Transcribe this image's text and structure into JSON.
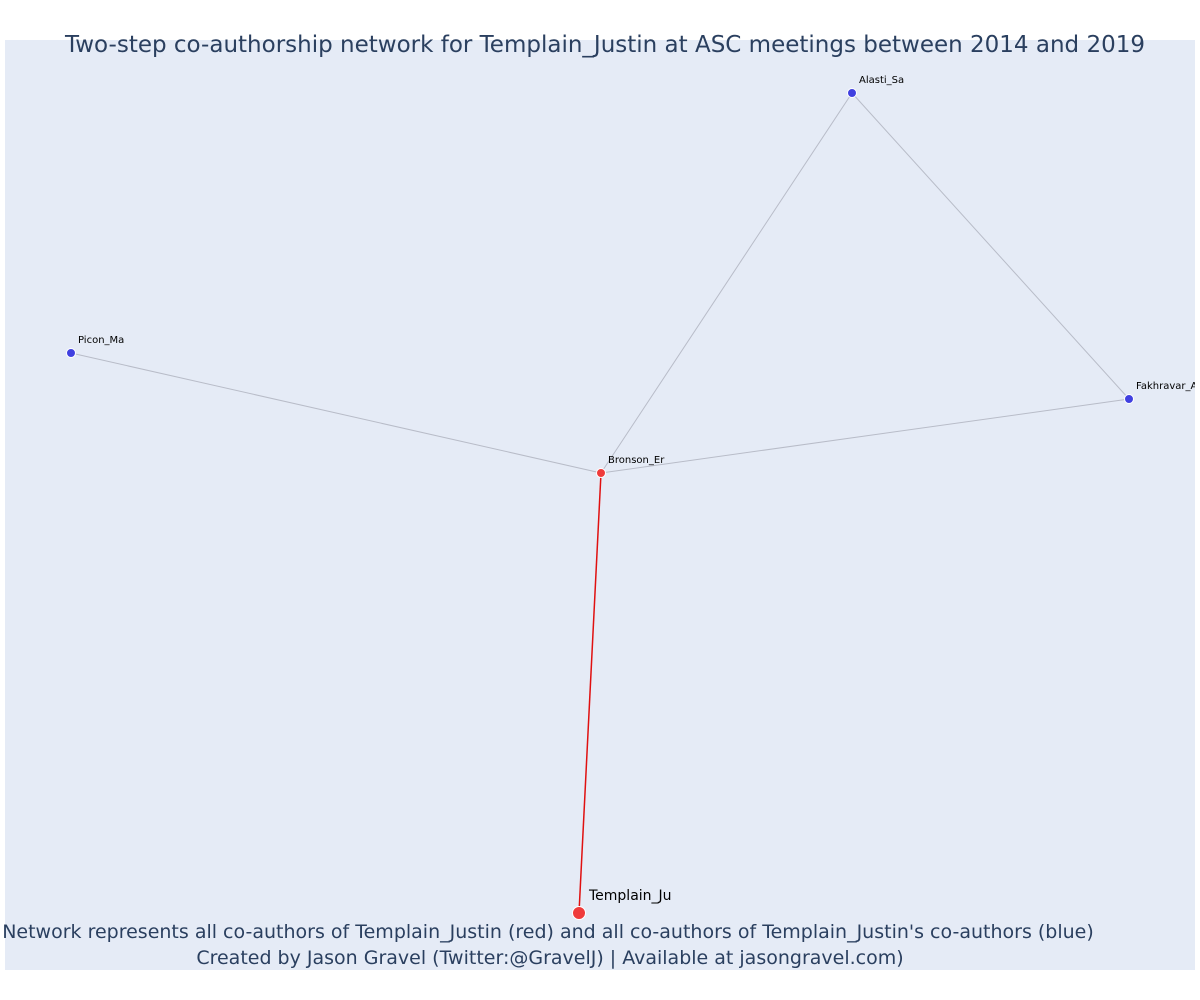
{
  "title": "Two-step co-authorship network for Templain_Justin at ASC meetings between 2014 and 2019",
  "footer": {
    "line1": "Network represents all co-authors of Templain_Justin (red) and all co-authors of Templain_Justin's co-authors (blue)",
    "line2": "Created by Jason Gravel (Twitter:@GravelJ) | Available at jasongravel.com)"
  },
  "colors": {
    "background": "#e5ebf6",
    "text": "#2a3f5f",
    "focal_node": "#ef3b3b",
    "coauthor_node": "#ef3b3b",
    "second_step_node": "#4040e0",
    "focal_edge": "#e01010",
    "other_edge": "#b8bcc8"
  },
  "nodes": [
    {
      "id": "Templain_Ju",
      "label": "Templain_Ju",
      "role": "focal"
    },
    {
      "id": "Bronson_Er",
      "label": "Bronson_Er",
      "role": "coauthor"
    },
    {
      "id": "Alasti_Sa",
      "label": "Alasti_Sa",
      "role": "second_step"
    },
    {
      "id": "Picon_Ma",
      "label": "Picon_Ma",
      "role": "second_step"
    },
    {
      "id": "Fakhravar_Ar",
      "label": "Fakhravar_Ar",
      "role": "second_step"
    }
  ],
  "edges": [
    {
      "source": "Templain_Ju",
      "target": "Bronson_Er"
    },
    {
      "source": "Bronson_Er",
      "target": "Alasti_Sa"
    },
    {
      "source": "Bronson_Er",
      "target": "Picon_Ma"
    },
    {
      "source": "Bronson_Er",
      "target": "Fakhravar_Ar"
    },
    {
      "source": "Alasti_Sa",
      "target": "Fakhravar_Ar"
    }
  ]
}
